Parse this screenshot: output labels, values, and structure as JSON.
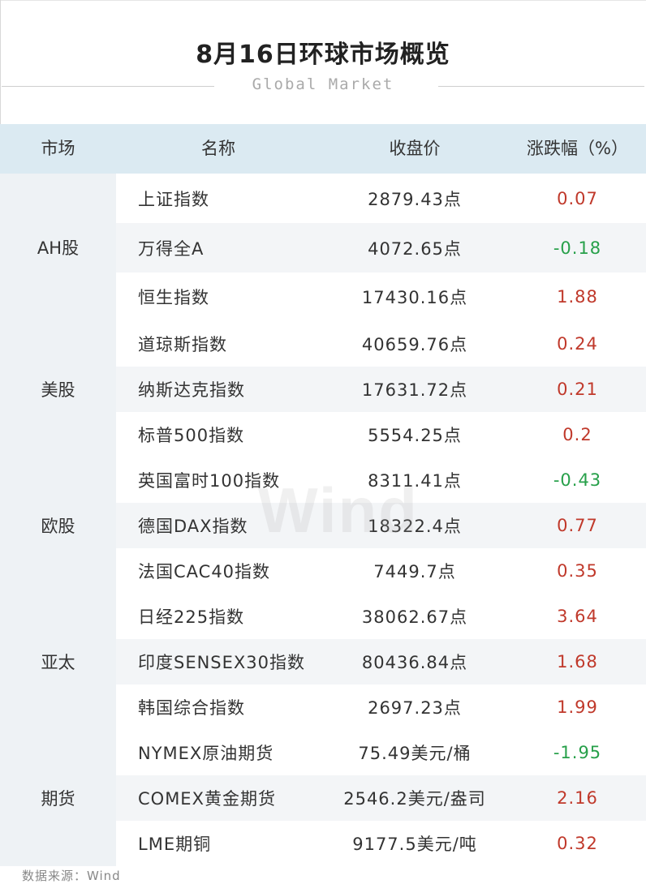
{
  "title": "8月16日环球市场概览",
  "subtitle": "Global Market",
  "columns": [
    "市场",
    "名称",
    "收盘价",
    "涨跌幅（%）"
  ],
  "groups": [
    {
      "market": "AH股",
      "rows": [
        {
          "name": "上证指数",
          "close": "2879.43点",
          "change": "0.07"
        },
        {
          "name": "万得全A",
          "close": "4072.65点",
          "change": "-0.18"
        },
        {
          "name": "恒生指数",
          "close": "17430.16点",
          "change": "1.88"
        }
      ]
    },
    {
      "market": "美股",
      "rows": [
        {
          "name": "道琼斯指数",
          "close": "40659.76点",
          "change": "0.24"
        },
        {
          "name": "纳斯达克指数",
          "close": "17631.72点",
          "change": "0.21"
        },
        {
          "name": "标普500指数",
          "close": "5554.25点",
          "change": "0.2"
        }
      ]
    },
    {
      "market": "欧股",
      "rows": [
        {
          "name": "英国富时100指数",
          "close": "8311.41点",
          "change": "-0.43"
        },
        {
          "name": "德国DAX指数",
          "close": "18322.4点",
          "change": "0.77"
        },
        {
          "name": "法国CAC40指数",
          "close": "7449.7点",
          "change": "0.35"
        }
      ]
    },
    {
      "market": "亚太",
      "rows": [
        {
          "name": "日经225指数",
          "close": "38062.67点",
          "change": "3.64"
        },
        {
          "name": "印度SENSEX30指数",
          "close": "80436.84点",
          "change": "1.68"
        },
        {
          "name": "韩国综合指数",
          "close": "2697.23点",
          "change": "1.99"
        }
      ]
    },
    {
      "market": "期货",
      "rows": [
        {
          "name": "NYMEX原油期货",
          "close": "75.49美元/桶",
          "change": "-1.95"
        },
        {
          "name": "COMEX黄金期货",
          "close": "2546.2美元/盎司",
          "change": "2.16"
        },
        {
          "name": "LME期铜",
          "close": "9177.5美元/吨",
          "change": "0.32"
        }
      ]
    }
  ],
  "watermark": "Wind",
  "source": "数据来源：Wind",
  "colors": {
    "up": "#c0392b",
    "down": "#27a04a",
    "header_bg": "#dbeaf2",
    "market_bg": "#eef2f5"
  }
}
